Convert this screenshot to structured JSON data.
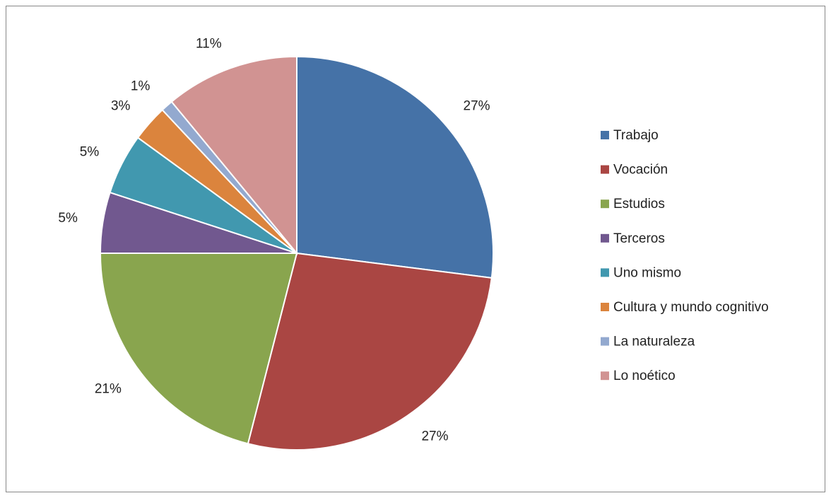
{
  "chart_data": {
    "type": "pie",
    "categories": [
      "Trabajo",
      "Vocación",
      "Estudios",
      "Terceros",
      "Uno mismo",
      "Cultura y mundo cognitivo",
      "La naturaleza",
      "Lo noético"
    ],
    "values": [
      27,
      27,
      21,
      5,
      5,
      3,
      1,
      11
    ],
    "value_labels": [
      "27%",
      "27%",
      "21%",
      "5%",
      "5%",
      "3%",
      "1%",
      "11%"
    ],
    "colors": [
      "#4572a7",
      "#aa4643",
      "#89a54e",
      "#71588f",
      "#4198af",
      "#db843d",
      "#93a9cf",
      "#d19392"
    ],
    "legend": "right"
  }
}
